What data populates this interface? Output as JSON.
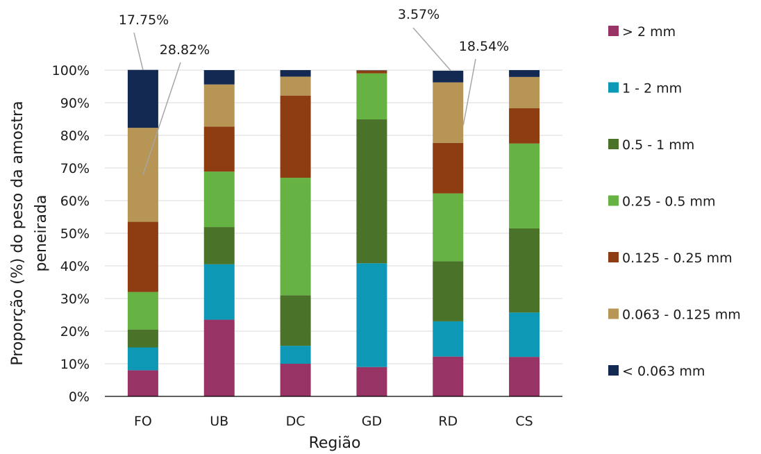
{
  "chart_data": {
    "type": "bar",
    "stacked": true,
    "normalized_percent": true,
    "xlabel": "Região",
    "ylabel_lines": [
      "Proporção (%) do peso da amostra",
      "peneirada"
    ],
    "ylim": [
      0,
      100
    ],
    "y_ticks": [
      "0%",
      "10%",
      "20%",
      "30%",
      "40%",
      "50%",
      "60%",
      "70%",
      "80%",
      "90%",
      "100%"
    ],
    "y_tick_values": [
      0,
      10,
      20,
      30,
      40,
      50,
      60,
      70,
      80,
      90,
      100
    ],
    "grid": true,
    "legend_position": "right",
    "categories": [
      "FO",
      "UB",
      "DC",
      "GD",
      "RD",
      "CS"
    ],
    "series": [
      {
        "name": "> 2 mm",
        "color": "#983366",
        "values": [
          8,
          23.5,
          10,
          9,
          12.2,
          12.1
        ]
      },
      {
        "name": "1 - 2 mm",
        "color": "#0d98b6",
        "values": [
          7,
          17,
          5.5,
          31.8,
          10.8,
          13.6
        ]
      },
      {
        "name": "0.5 - 1 mm",
        "color": "#4a7229",
        "values": [
          5.5,
          11.4,
          15.5,
          44.1,
          18.4,
          25.8
        ]
      },
      {
        "name": "0.25 - 0.5 mm",
        "color": "#66b343",
        "values": [
          11.5,
          17,
          36,
          14.1,
          20.8,
          26
        ]
      },
      {
        "name": "0.125 - 0.25 mm",
        "color": "#8d3d11",
        "values": [
          21.5,
          13.8,
          25.2,
          0.8,
          15.5,
          10.8
        ]
      },
      {
        "name": "0.063 - 0.125 mm",
        "color": "#b69555",
        "values": [
          28.82,
          12.9,
          5.8,
          0.1,
          18.54,
          9.6
        ]
      },
      {
        "name": "< 0.063 mm",
        "color": "#142952",
        "values": [
          17.75,
          4.4,
          2,
          0.1,
          3.57,
          2.1
        ]
      }
    ],
    "annotations": [
      {
        "text": "17.75%",
        "category": "FO",
        "series": "< 0.063 mm"
      },
      {
        "text": "28.82%",
        "category": "FO",
        "series": "0.063 - 0.125 mm"
      },
      {
        "text": "3.57%",
        "category": "RD",
        "series": "< 0.063 mm"
      },
      {
        "text": "18.54%",
        "category": "RD",
        "series": "0.063 - 0.125 mm"
      }
    ]
  }
}
